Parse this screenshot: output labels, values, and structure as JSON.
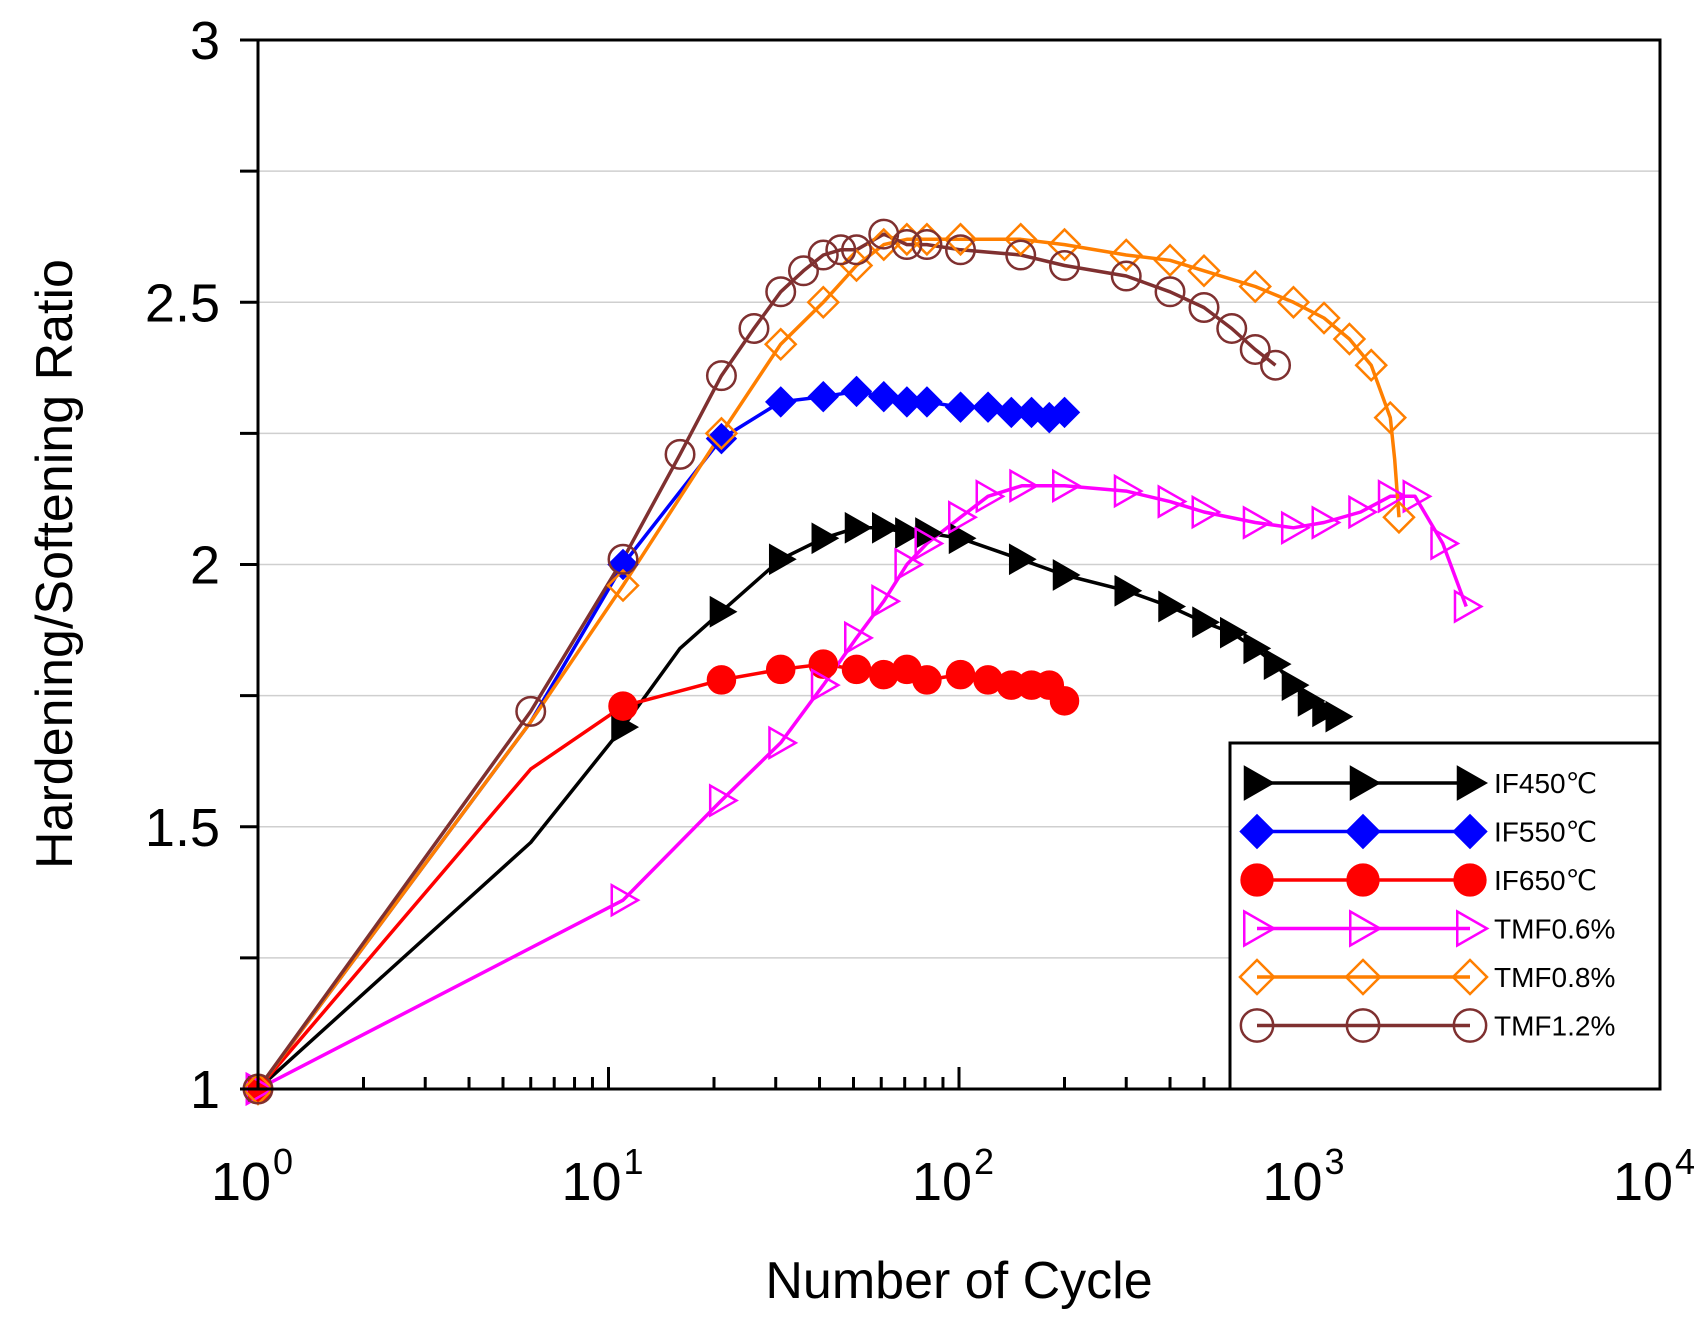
{
  "chart_data": {
    "type": "line",
    "x_scale": "log",
    "xlabel": "Number of Cycle",
    "ylabel": "Hardening/Softening Ratio",
    "xlim": [
      1,
      10000
    ],
    "ylim": [
      1,
      3
    ],
    "x_ticks": [
      {
        "base": "10",
        "exp": "0"
      },
      {
        "base": "10",
        "exp": "1"
      },
      {
        "base": "10",
        "exp": "2"
      },
      {
        "base": "10",
        "exp": "3"
      },
      {
        "base": "10",
        "exp": "4"
      }
    ],
    "y_ticks": [
      "1",
      "1.5",
      "2",
      "2.5",
      "3"
    ],
    "y_tick_values": [
      1,
      1.5,
      2,
      2.5,
      3
    ],
    "y_grid": [
      1.25,
      1.5,
      1.75,
      2,
      2.25,
      2.5,
      2.75
    ],
    "legend_position": "bottom-right",
    "series": [
      {
        "name": "IF450℃",
        "color": "#000000",
        "marker": "triangle-right",
        "filled": true,
        "x": [
          1,
          6,
          11,
          16,
          21,
          31,
          41,
          51,
          61,
          71,
          81,
          101,
          150,
          200,
          300,
          400,
          500,
          600,
          700,
          800,
          900,
          1000,
          1100,
          1200
        ],
        "y": [
          1,
          1.47,
          1.69,
          1.84,
          1.91,
          2.01,
          2.05,
          2.07,
          2.07,
          2.06,
          2.06,
          2.05,
          2.01,
          1.98,
          1.95,
          1.92,
          1.89,
          1.87,
          1.84,
          1.81,
          1.77,
          1.74,
          1.72,
          1.71
        ],
        "marker_x": [
          1,
          11,
          21,
          31,
          41,
          51,
          61,
          71,
          81,
          101,
          150,
          200,
          300,
          400,
          500,
          600,
          700,
          800,
          900,
          1000,
          1100,
          1200
        ],
        "marker_y": [
          1,
          1.69,
          1.91,
          2.01,
          2.05,
          2.07,
          2.07,
          2.06,
          2.06,
          2.05,
          2.01,
          1.98,
          1.95,
          1.92,
          1.89,
          1.87,
          1.84,
          1.81,
          1.77,
          1.74,
          1.72,
          1.71
        ]
      },
      {
        "name": "IF550℃",
        "color": "#0000ff",
        "marker": "diamond",
        "filled": true,
        "x": [
          1,
          6,
          11,
          21,
          31,
          41,
          51,
          61,
          71,
          81,
          101,
          121,
          141,
          161,
          181,
          200
        ],
        "y": [
          1,
          1.7,
          2.0,
          2.24,
          2.31,
          2.32,
          2.33,
          2.32,
          2.31,
          2.31,
          2.3,
          2.3,
          2.29,
          2.29,
          2.28,
          2.29
        ],
        "marker_x": [
          1,
          11,
          21,
          31,
          41,
          51,
          61,
          71,
          81,
          101,
          121,
          141,
          161,
          181,
          200
        ],
        "marker_y": [
          1,
          2.0,
          2.24,
          2.31,
          2.32,
          2.33,
          2.32,
          2.31,
          2.31,
          2.3,
          2.3,
          2.29,
          2.29,
          2.28,
          2.29
        ]
      },
      {
        "name": "IF650℃",
        "color": "#ff0000",
        "marker": "circle",
        "filled": true,
        "x": [
          1,
          6,
          11,
          21,
          31,
          41,
          51,
          61,
          71,
          81,
          101,
          121,
          141,
          161,
          181,
          200
        ],
        "y": [
          1,
          1.61,
          1.73,
          1.78,
          1.8,
          1.81,
          1.8,
          1.79,
          1.8,
          1.78,
          1.79,
          1.78,
          1.77,
          1.77,
          1.77,
          1.74
        ],
        "marker_x": [
          1,
          11,
          21,
          31,
          41,
          51,
          61,
          71,
          81,
          101,
          121,
          141,
          161,
          181,
          200
        ],
        "marker_y": [
          1,
          1.73,
          1.78,
          1.8,
          1.81,
          1.8,
          1.79,
          1.8,
          1.78,
          1.79,
          1.78,
          1.77,
          1.77,
          1.77,
          1.74
        ]
      },
      {
        "name": "TMF0.6%",
        "color": "#ff00ff",
        "marker": "triangle-right",
        "filled": false,
        "x": [
          1,
          11,
          21,
          31,
          41,
          51,
          61,
          71,
          81,
          101,
          121,
          151,
          200,
          300,
          400,
          500,
          700,
          900,
          1100,
          1400,
          1700,
          2000,
          2400,
          2800
        ],
        "y": [
          1,
          1.36,
          1.55,
          1.66,
          1.77,
          1.86,
          1.93,
          2.0,
          2.04,
          2.09,
          2.13,
          2.15,
          2.15,
          2.14,
          2.12,
          2.1,
          2.08,
          2.07,
          2.08,
          2.1,
          2.13,
          2.13,
          2.04,
          1.92
        ],
        "marker_x": [
          1,
          11,
          21,
          31,
          41,
          51,
          61,
          71,
          81,
          101,
          121,
          151,
          200,
          300,
          400,
          500,
          700,
          900,
          1100,
          1400,
          1700,
          2000,
          2400,
          2800
        ],
        "marker_y": [
          1,
          1.36,
          1.55,
          1.66,
          1.77,
          1.86,
          1.93,
          2.0,
          2.04,
          2.09,
          2.13,
          2.15,
          2.15,
          2.14,
          2.12,
          2.1,
          2.08,
          2.07,
          2.08,
          2.1,
          2.13,
          2.13,
          2.04,
          1.92
        ]
      },
      {
        "name": "TMF0.8%",
        "color": "#ff7f00",
        "marker": "diamond",
        "filled": false,
        "x": [
          1,
          6,
          11,
          21,
          31,
          41,
          51,
          61,
          71,
          81,
          101,
          150,
          200,
          300,
          400,
          500,
          700,
          900,
          1100,
          1300,
          1500,
          1700,
          1750,
          1800
        ],
        "y": [
          1,
          1.7,
          1.96,
          2.25,
          2.42,
          2.5,
          2.57,
          2.61,
          2.62,
          2.62,
          2.62,
          2.62,
          2.61,
          2.59,
          2.58,
          2.56,
          2.53,
          2.5,
          2.47,
          2.43,
          2.38,
          2.28,
          2.2,
          2.09
        ],
        "marker_x": [
          1,
          11,
          21,
          31,
          41,
          51,
          61,
          71,
          81,
          101,
          150,
          200,
          300,
          400,
          500,
          700,
          900,
          1100,
          1300,
          1500,
          1700,
          1800
        ],
        "marker_y": [
          1,
          1.96,
          2.25,
          2.42,
          2.5,
          2.57,
          2.61,
          2.62,
          2.62,
          2.62,
          2.62,
          2.61,
          2.59,
          2.58,
          2.56,
          2.53,
          2.5,
          2.47,
          2.43,
          2.38,
          2.28,
          2.09
        ]
      },
      {
        "name": "TMF1.2%",
        "color": "#7f3030",
        "marker": "circle",
        "filled": false,
        "x": [
          1,
          6,
          11,
          16,
          21,
          26,
          31,
          36,
          41,
          46,
          51,
          61,
          71,
          81,
          101,
          150,
          200,
          300,
          400,
          500,
          600,
          700,
          800
        ],
        "y": [
          1,
          1.72,
          2.01,
          2.21,
          2.36,
          2.45,
          2.52,
          2.56,
          2.59,
          2.6,
          2.6,
          2.63,
          2.61,
          2.61,
          2.6,
          2.59,
          2.57,
          2.55,
          2.52,
          2.49,
          2.45,
          2.41,
          2.38
        ],
        "marker_x": [
          1,
          6,
          11,
          16,
          21,
          26,
          31,
          36,
          41,
          46,
          51,
          61,
          71,
          81,
          101,
          150,
          200,
          300,
          400,
          500,
          600,
          700,
          800
        ],
        "marker_y": [
          1,
          1.72,
          2.01,
          2.21,
          2.36,
          2.45,
          2.52,
          2.56,
          2.59,
          2.6,
          2.6,
          2.63,
          2.61,
          2.61,
          2.6,
          2.59,
          2.57,
          2.55,
          2.52,
          2.49,
          2.45,
          2.41,
          2.38
        ]
      }
    ]
  }
}
